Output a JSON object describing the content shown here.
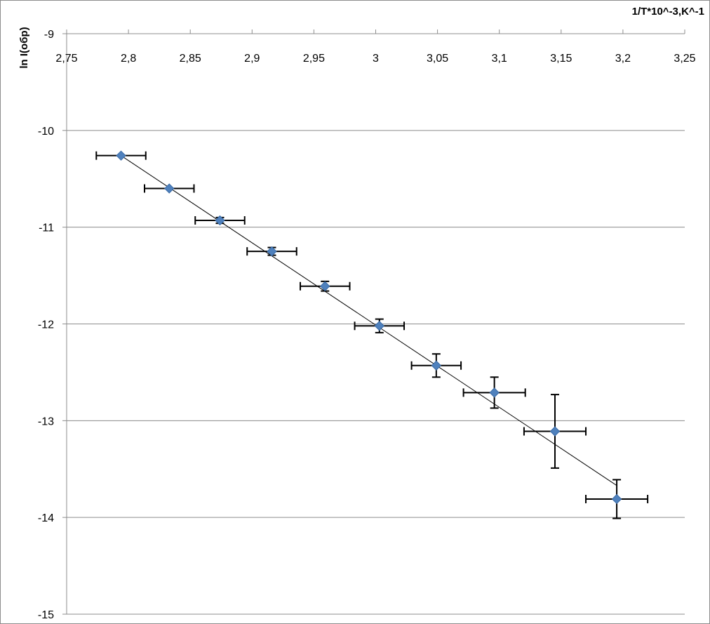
{
  "chart_data": {
    "type": "scatter",
    "title": "",
    "xlabel": "1/T*10^-3,K^-1",
    "ylabel": "ln I(обр)",
    "xlim": [
      2.75,
      3.25
    ],
    "ylim": [
      -15,
      -9
    ],
    "x_ticks": [
      "2,75",
      "2,8",
      "2,85",
      "2,9",
      "2,95",
      "3",
      "3,05",
      "3,1",
      "3,15",
      "3,2",
      "3,25"
    ],
    "y_ticks": [
      "-9",
      "-10",
      "-11",
      "-12",
      "-13",
      "-14",
      "-15"
    ],
    "grid": "horizontal",
    "series": [
      {
        "marker": "diamond",
        "color": "#4f81bd",
        "points": [
          {
            "x": 2.794,
            "y": -10.26,
            "xerr": 0.02,
            "yerr": 0.0
          },
          {
            "x": 2.833,
            "y": -10.6,
            "xerr": 0.02,
            "yerr": 0.0
          },
          {
            "x": 2.874,
            "y": -10.93,
            "xerr": 0.02,
            "yerr": 0.03
          },
          {
            "x": 2.916,
            "y": -11.25,
            "xerr": 0.02,
            "yerr": 0.04
          },
          {
            "x": 2.959,
            "y": -11.61,
            "xerr": 0.02,
            "yerr": 0.05
          },
          {
            "x": 3.003,
            "y": -12.02,
            "xerr": 0.02,
            "yerr": 0.07
          },
          {
            "x": 3.049,
            "y": -12.43,
            "xerr": 0.02,
            "yerr": 0.12
          },
          {
            "x": 3.096,
            "y": -12.71,
            "xerr": 0.025,
            "yerr": 0.16
          },
          {
            "x": 3.145,
            "y": -13.11,
            "xerr": 0.025,
            "yerr": 0.38
          },
          {
            "x": 3.195,
            "y": -13.81,
            "xerr": 0.025,
            "yerr": 0.2
          }
        ]
      }
    ],
    "trendline": {
      "type": "linear",
      "x": [
        2.794,
        3.195
      ],
      "y": [
        -10.26,
        -13.67
      ]
    }
  }
}
